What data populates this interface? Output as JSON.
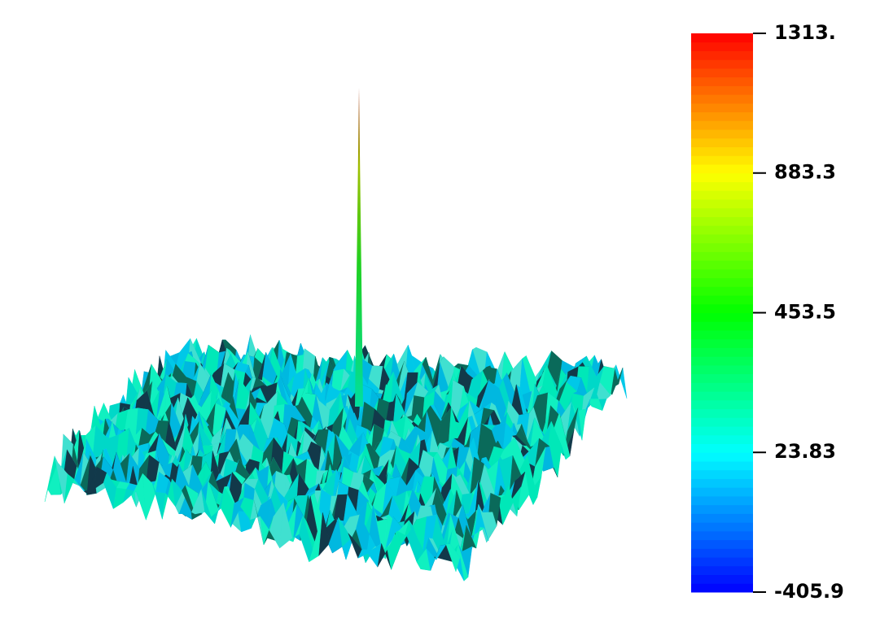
{
  "chart_data": {
    "type": "surface",
    "colorbar": {
      "clim": [
        -405.9,
        1313
      ],
      "ticks": [
        {
          "value": 1313,
          "label": "1313."
        },
        883.3,
        453.5,
        23.83,
        -405.9
      ],
      "colormap": [
        "#0000ff",
        "#00ffff",
        "#00ff00",
        "#ffff00",
        "#ff0000"
      ]
    }
  }
}
